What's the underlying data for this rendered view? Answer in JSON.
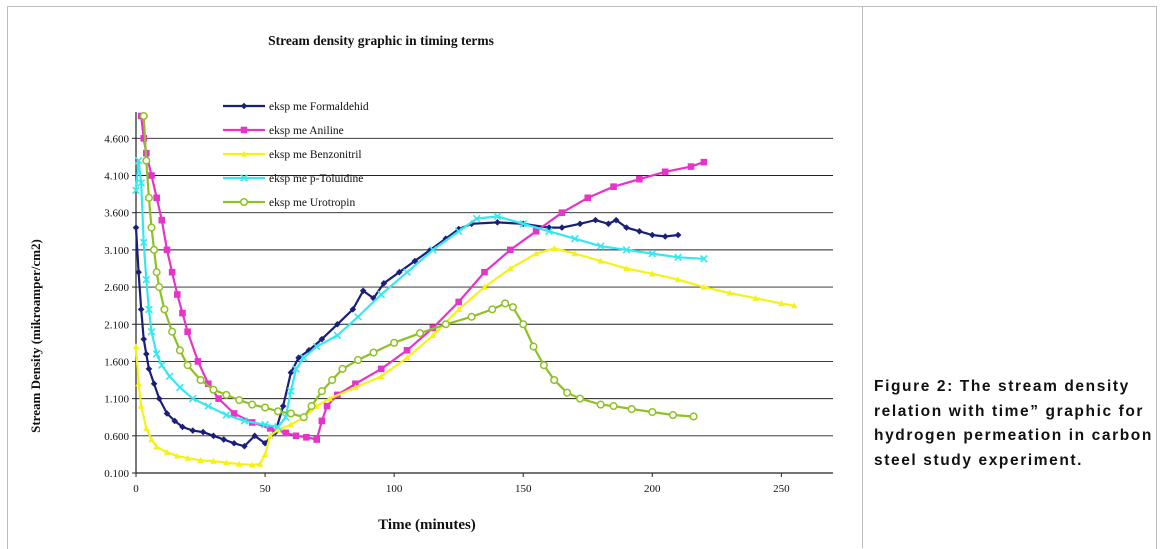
{
  "caption": "Figure 2: The stream density relation with time” graphic for hydrogen permeation in carbon steel study experiment.",
  "chart_data": {
    "type": "line",
    "title": "Stream density graphic in timing terms",
    "xlabel": "Time (minutes)",
    "ylabel": "Stream Density (mikroamper/cm2)",
    "xlim": [
      0,
      270
    ],
    "ylim": [
      0.1,
      4.9
    ],
    "xticks": [
      "0",
      "50",
      "100",
      "150",
      "200",
      "250"
    ],
    "yticks": [
      "0.100",
      "0.600",
      "1.100",
      "1.600",
      "2.100",
      "2.600",
      "3.100",
      "3.600",
      "4.100",
      "4.600"
    ],
    "grid": "horizontal",
    "legend_position": "top-left",
    "series": [
      {
        "name": "eksp me Formaldehid",
        "color": "#1a1f7a",
        "marker": "diamond",
        "points": [
          [
            0,
            3.4
          ],
          [
            1,
            2.8
          ],
          [
            2,
            2.3
          ],
          [
            3,
            1.9
          ],
          [
            4,
            1.7
          ],
          [
            5,
            1.5
          ],
          [
            7,
            1.3
          ],
          [
            9,
            1.1
          ],
          [
            12,
            0.9
          ],
          [
            15,
            0.8
          ],
          [
            18,
            0.72
          ],
          [
            22,
            0.67
          ],
          [
            26,
            0.65
          ],
          [
            30,
            0.6
          ],
          [
            34,
            0.55
          ],
          [
            38,
            0.5
          ],
          [
            42,
            0.46
          ],
          [
            46,
            0.6
          ],
          [
            50,
            0.5
          ],
          [
            54,
            0.65
          ],
          [
            57,
            1.0
          ],
          [
            60,
            1.45
          ],
          [
            63,
            1.65
          ],
          [
            67,
            1.75
          ],
          [
            72,
            1.9
          ],
          [
            78,
            2.1
          ],
          [
            84,
            2.3
          ],
          [
            88,
            2.55
          ],
          [
            92,
            2.45
          ],
          [
            96,
            2.65
          ],
          [
            102,
            2.8
          ],
          [
            108,
            2.95
          ],
          [
            114,
            3.1
          ],
          [
            120,
            3.25
          ],
          [
            125,
            3.38
          ],
          [
            130,
            3.45
          ],
          [
            140,
            3.47
          ],
          [
            150,
            3.45
          ],
          [
            160,
            3.4
          ],
          [
            165,
            3.4
          ],
          [
            172,
            3.45
          ],
          [
            178,
            3.5
          ],
          [
            183,
            3.45
          ],
          [
            186,
            3.5
          ],
          [
            190,
            3.4
          ],
          [
            195,
            3.35
          ],
          [
            200,
            3.3
          ],
          [
            205,
            3.28
          ],
          [
            210,
            3.3
          ]
        ]
      },
      {
        "name": "eksp me Aniline",
        "color": "#e634c8",
        "marker": "square",
        "points": [
          [
            2,
            4.9
          ],
          [
            3,
            4.6
          ],
          [
            4,
            4.4
          ],
          [
            6,
            4.1
          ],
          [
            8,
            3.8
          ],
          [
            10,
            3.5
          ],
          [
            12,
            3.1
          ],
          [
            14,
            2.8
          ],
          [
            16,
            2.5
          ],
          [
            18,
            2.25
          ],
          [
            20,
            2.0
          ],
          [
            24,
            1.6
          ],
          [
            28,
            1.3
          ],
          [
            32,
            1.1
          ],
          [
            38,
            0.9
          ],
          [
            45,
            0.78
          ],
          [
            52,
            0.7
          ],
          [
            58,
            0.64
          ],
          [
            62,
            0.6
          ],
          [
            66,
            0.58
          ],
          [
            70,
            0.55
          ],
          [
            72,
            0.8
          ],
          [
            74,
            1.0
          ],
          [
            78,
            1.15
          ],
          [
            85,
            1.3
          ],
          [
            95,
            1.5
          ],
          [
            105,
            1.75
          ],
          [
            115,
            2.05
          ],
          [
            125,
            2.4
          ],
          [
            135,
            2.8
          ],
          [
            145,
            3.1
          ],
          [
            155,
            3.35
          ],
          [
            165,
            3.6
          ],
          [
            175,
            3.8
          ],
          [
            185,
            3.95
          ],
          [
            195,
            4.05
          ],
          [
            205,
            4.15
          ],
          [
            215,
            4.22
          ],
          [
            220,
            4.28
          ]
        ]
      },
      {
        "name": "eksp me Benzonitril",
        "color": "#f6f218",
        "marker": "triangle",
        "points": [
          [
            0,
            1.8
          ],
          [
            1,
            1.3
          ],
          [
            2,
            1.0
          ],
          [
            4,
            0.7
          ],
          [
            6,
            0.55
          ],
          [
            8,
            0.45
          ],
          [
            12,
            0.38
          ],
          [
            16,
            0.33
          ],
          [
            20,
            0.3
          ],
          [
            25,
            0.27
          ],
          [
            30,
            0.26
          ],
          [
            35,
            0.24
          ],
          [
            40,
            0.22
          ],
          [
            45,
            0.21
          ],
          [
            48,
            0.22
          ],
          [
            50,
            0.35
          ],
          [
            52,
            0.6
          ],
          [
            55,
            0.68
          ],
          [
            60,
            0.75
          ],
          [
            65,
            0.85
          ],
          [
            70,
            1.0
          ],
          [
            75,
            1.1
          ],
          [
            85,
            1.25
          ],
          [
            95,
            1.4
          ],
          [
            105,
            1.65
          ],
          [
            115,
            1.95
          ],
          [
            125,
            2.3
          ],
          [
            135,
            2.6
          ],
          [
            145,
            2.85
          ],
          [
            155,
            3.05
          ],
          [
            162,
            3.12
          ],
          [
            170,
            3.05
          ],
          [
            180,
            2.95
          ],
          [
            190,
            2.85
          ],
          [
            200,
            2.78
          ],
          [
            210,
            2.7
          ],
          [
            220,
            2.6
          ],
          [
            230,
            2.52
          ],
          [
            240,
            2.45
          ],
          [
            250,
            2.38
          ],
          [
            255,
            2.35
          ]
        ]
      },
      {
        "name": "eksp me p-Toluidine",
        "color": "#35e8ef",
        "marker": "x",
        "points": [
          [
            0,
            3.9
          ],
          [
            1,
            4.3
          ],
          [
            2,
            4.0
          ],
          [
            3,
            3.2
          ],
          [
            4,
            2.7
          ],
          [
            5,
            2.3
          ],
          [
            6,
            2.0
          ],
          [
            8,
            1.7
          ],
          [
            10,
            1.55
          ],
          [
            13,
            1.4
          ],
          [
            17,
            1.25
          ],
          [
            22,
            1.1
          ],
          [
            28,
            1.0
          ],
          [
            35,
            0.88
          ],
          [
            42,
            0.8
          ],
          [
            50,
            0.75
          ],
          [
            55,
            0.72
          ],
          [
            58,
            0.85
          ],
          [
            60,
            1.2
          ],
          [
            62,
            1.5
          ],
          [
            65,
            1.65
          ],
          [
            70,
            1.8
          ],
          [
            78,
            1.95
          ],
          [
            86,
            2.2
          ],
          [
            95,
            2.5
          ],
          [
            105,
            2.8
          ],
          [
            115,
            3.1
          ],
          [
            125,
            3.35
          ],
          [
            132,
            3.52
          ],
          [
            140,
            3.55
          ],
          [
            150,
            3.45
          ],
          [
            160,
            3.35
          ],
          [
            170,
            3.25
          ],
          [
            180,
            3.15
          ],
          [
            190,
            3.1
          ],
          [
            200,
            3.05
          ],
          [
            210,
            3.0
          ],
          [
            220,
            2.98
          ]
        ]
      },
      {
        "name": "eksp me Urotropin",
        "color": "#8fc126",
        "marker": "circle",
        "points": [
          [
            3,
            4.9
          ],
          [
            4,
            4.3
          ],
          [
            5,
            3.8
          ],
          [
            6,
            3.4
          ],
          [
            7,
            3.1
          ],
          [
            8,
            2.8
          ],
          [
            9,
            2.6
          ],
          [
            11,
            2.3
          ],
          [
            14,
            2.0
          ],
          [
            17,
            1.75
          ],
          [
            20,
            1.55
          ],
          [
            25,
            1.35
          ],
          [
            30,
            1.22
          ],
          [
            35,
            1.15
          ],
          [
            40,
            1.08
          ],
          [
            45,
            1.02
          ],
          [
            50,
            0.98
          ],
          [
            55,
            0.93
          ],
          [
            60,
            0.9
          ],
          [
            65,
            0.85
          ],
          [
            68,
            1.0
          ],
          [
            72,
            1.2
          ],
          [
            76,
            1.35
          ],
          [
            80,
            1.5
          ],
          [
            86,
            1.62
          ],
          [
            92,
            1.72
          ],
          [
            100,
            1.85
          ],
          [
            110,
            1.98
          ],
          [
            120,
            2.1
          ],
          [
            130,
            2.2
          ],
          [
            138,
            2.3
          ],
          [
            143,
            2.38
          ],
          [
            146,
            2.33
          ],
          [
            150,
            2.1
          ],
          [
            154,
            1.8
          ],
          [
            158,
            1.55
          ],
          [
            162,
            1.35
          ],
          [
            167,
            1.18
          ],
          [
            172,
            1.1
          ],
          [
            180,
            1.02
          ],
          [
            185,
            1.0
          ],
          [
            192,
            0.96
          ],
          [
            200,
            0.92
          ],
          [
            208,
            0.88
          ],
          [
            216,
            0.86
          ]
        ]
      }
    ]
  }
}
